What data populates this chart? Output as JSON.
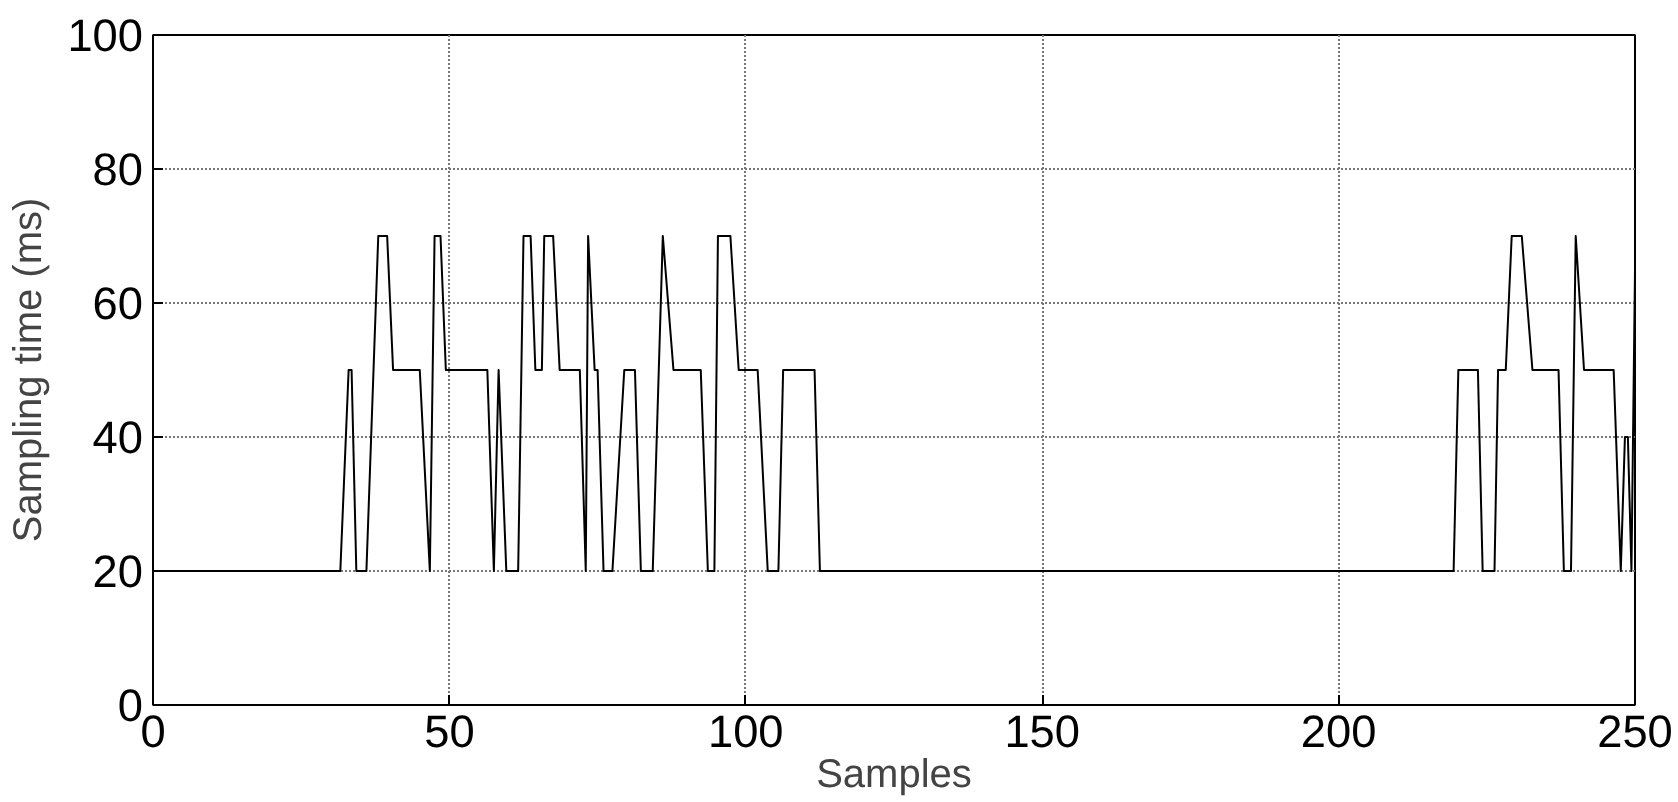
{
  "chart_data": {
    "type": "line",
    "xlabel": "Samples",
    "ylabel": "Sampling time (ms)",
    "xlim": [
      0,
      250
    ],
    "ylim": [
      0,
      100
    ],
    "xticks": [
      0,
      50,
      100,
      150,
      200,
      250
    ],
    "yticks": [
      0,
      20,
      40,
      60,
      80,
      100
    ],
    "grid": true,
    "marker": "none",
    "line_style": "solid",
    "series": [
      {
        "color": "#000000",
        "x": [
          0,
          31.6,
          33,
          33.5,
          34.3,
          36,
          38,
          39.5,
          40.5,
          45,
          46.7,
          47.5,
          48.5,
          49.4,
          56.4,
          57.5,
          58.3,
          59.6,
          61.6,
          62.5,
          63.7,
          64.5,
          65.6,
          66,
          67.5,
          68.6,
          72,
          73,
          73.4,
          74.5,
          75,
          76,
          77.5,
          79.5,
          81.3,
          82.3,
          84.3,
          86,
          87.8,
          92.4,
          93.6,
          94.7,
          95.3,
          97.4,
          98.8,
          102,
          103.7,
          105.5,
          106.3,
          111.6,
          112.5,
          219.4,
          220.2,
          223.5,
          224.3,
          226.3,
          226.9,
          228.2,
          229.2,
          230.9,
          232.7,
          237.1,
          238,
          239.2,
          240,
          241.4,
          246.4,
          247.6,
          248.3,
          248.8,
          249.4,
          250
        ],
        "values": [
          20,
          20,
          50,
          50,
          20,
          20,
          70,
          70,
          50,
          50,
          20,
          70,
          70,
          50,
          50,
          20,
          50,
          20,
          20,
          70,
          70,
          50,
          50,
          70,
          70,
          50,
          50,
          20,
          70,
          50,
          50,
          20,
          20,
          50,
          50,
          20,
          20,
          70,
          50,
          50,
          20,
          20,
          70,
          70,
          50,
          50,
          20,
          20,
          50,
          50,
          20,
          20,
          50,
          50,
          20,
          20,
          50,
          50,
          70,
          70,
          50,
          50,
          20,
          20,
          70,
          50,
          50,
          20,
          40,
          40,
          20,
          65
        ]
      }
    ]
  }
}
